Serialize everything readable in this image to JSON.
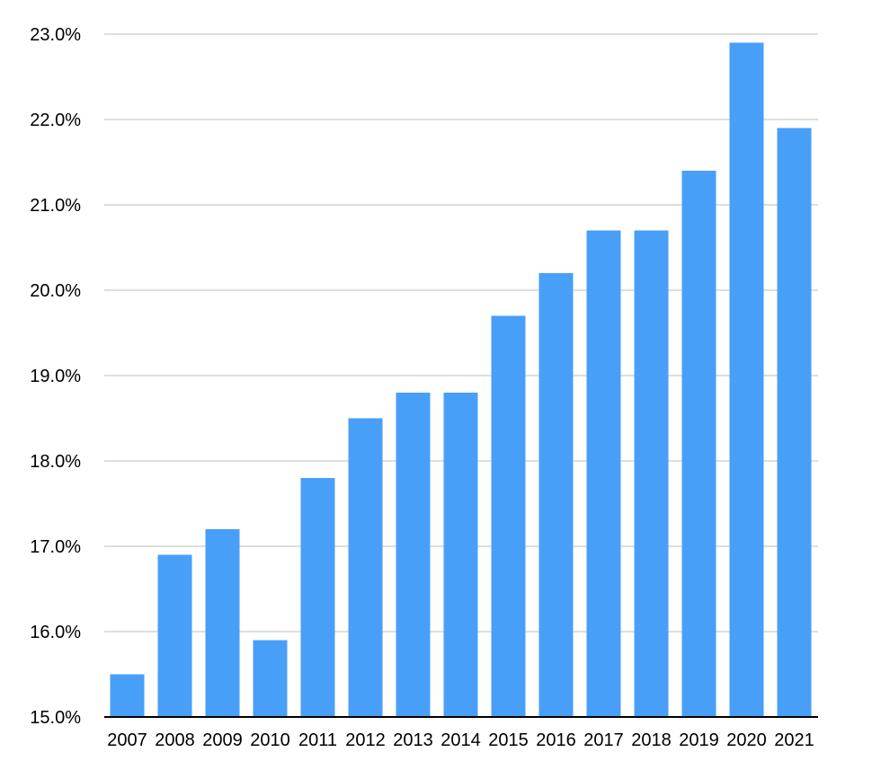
{
  "chart_data": {
    "type": "bar",
    "title": "",
    "xlabel": "",
    "ylabel": "",
    "categories": [
      "2007",
      "2008",
      "2009",
      "2010",
      "2011",
      "2012",
      "2013",
      "2014",
      "2015",
      "2016",
      "2017",
      "2018",
      "2019",
      "2020",
      "2021"
    ],
    "values": [
      15.5,
      16.9,
      17.2,
      15.9,
      17.8,
      18.5,
      18.8,
      18.8,
      19.7,
      20.2,
      20.7,
      20.7,
      21.4,
      22.9,
      21.9
    ],
    "ylim": [
      15.0,
      23.0
    ],
    "y_ticks": [
      15.0,
      16.0,
      17.0,
      18.0,
      19.0,
      20.0,
      21.0,
      22.0,
      23.0
    ],
    "y_tick_labels": [
      "15.0%",
      "16.0%",
      "17.0%",
      "18.0%",
      "19.0%",
      "20.0%",
      "21.0%",
      "22.0%",
      "23.0%"
    ],
    "grid": true,
    "legend": "none",
    "colors": {
      "bar": "#489ff8",
      "grid": "#bdbdbd",
      "axis": "#000000",
      "text": "#000000"
    }
  }
}
